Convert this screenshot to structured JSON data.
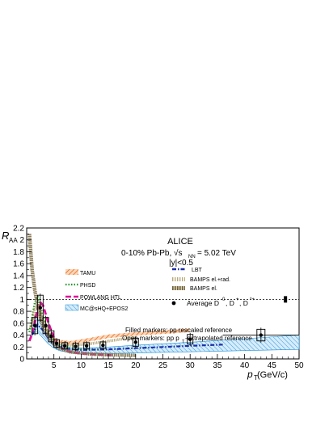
{
  "chart_data": {
    "type": "line",
    "title": "ALICE",
    "system_label": "0-10% Pb-Pb, √s",
    "system_sub": "NN",
    "system_energy": " = 5.02 TeV",
    "rapidity_label": "|y|<0.5",
    "ylabel": "R",
    "ylabel_sub": "AA",
    "xlabel": "p",
    "xlabel_sub": "T",
    "xlabel_unit": " (GeV/c)",
    "xlim": [
      0,
      50
    ],
    "ylim": [
      0,
      2.2
    ],
    "x_ticks": [
      "5",
      "10",
      "15",
      "20",
      "25",
      "30",
      "35",
      "40",
      "45",
      "50"
    ],
    "y_ticks": [
      "0",
      "0.2",
      "0.4",
      "0.6",
      "0.8",
      "1",
      "1.2",
      "1.4",
      "1.6",
      "1.8",
      "2",
      "2.2"
    ],
    "reference_line": 1,
    "note_filled": "Filled markers: pp rescaled reference",
    "note_open": "Open markers: pp p",
    "note_open_sub": "T",
    "note_open_end": "-extrapolated reference",
    "legend_left": [
      "TAMU",
      "PHSD",
      "POWLANG HTL",
      "MC@sHQ+EPOS2"
    ],
    "legend_right": [
      "LBT",
      "BAMPS el.+rad.",
      "BAMPS el."
    ],
    "average_label": "Average D",
    "average_sup": "0",
    "average_rest": ", D",
    "average_sup2": "+",
    "average_rest2": ", D",
    "average_sup3": "*+",
    "data_points": {
      "x": [
        1.5,
        2.5,
        3.5,
        4.5,
        5.5,
        7.0,
        9.0,
        11.0,
        14.0,
        20.0,
        30.0,
        43.0
      ],
      "y": [
        0.56,
        0.86,
        0.56,
        0.38,
        0.26,
        0.22,
        0.21,
        0.22,
        0.23,
        0.28,
        0.33,
        0.4
      ]
    },
    "scaled_point": {
      "x": 47.5,
      "y": 1.0
    },
    "series": [
      {
        "name": "TAMU",
        "color": "#e86a1c",
        "x": [
          0.5,
          1.0,
          1.5,
          2.0,
          2.5,
          3.0,
          4.0,
          5.0,
          6.0,
          8.0,
          10.0,
          12.0,
          15.0,
          20.0,
          25.0,
          30.0
        ],
        "y": [
          0.5,
          0.6,
          0.72,
          0.74,
          0.68,
          0.58,
          0.42,
          0.33,
          0.29,
          0.27,
          0.3,
          0.33,
          0.38,
          0.42,
          0.45,
          0.48
        ]
      },
      {
        "name": "PHSD",
        "color": "#1a9a20",
        "x": [
          0.5,
          1.0,
          1.5,
          2.0,
          2.5,
          3.0,
          4.0,
          5.0,
          6.0,
          8.0,
          10.0,
          12.0,
          15.0
        ],
        "y": [
          0.45,
          0.7,
          0.95,
          1.05,
          0.9,
          0.7,
          0.45,
          0.3,
          0.22,
          0.18,
          0.17,
          0.16,
          0.16
        ]
      },
      {
        "name": "POWLANG HTL",
        "color": "#e0109a",
        "x": [
          0.5,
          1.0,
          1.5,
          2.0,
          2.5,
          3.0,
          4.0,
          5.0,
          6.0,
          8.0,
          10.0,
          12.0,
          14.0,
          16.0
        ],
        "y": [
          0.3,
          0.42,
          0.62,
          0.85,
          0.95,
          0.9,
          0.6,
          0.35,
          0.2,
          0.12,
          0.09,
          0.08,
          0.07,
          0.06
        ]
      },
      {
        "name": "LBT",
        "color": "#1b2fa6",
        "x": [
          1.0,
          2.0,
          3.0,
          4.0,
          5.0,
          6.0,
          8.0,
          10.0,
          15.0,
          20.0,
          25.0,
          30.0,
          36.0
        ],
        "y": [
          0.4,
          0.58,
          0.48,
          0.34,
          0.25,
          0.2,
          0.16,
          0.15,
          0.16,
          0.18,
          0.2,
          0.22,
          0.24
        ]
      },
      {
        "name": "BAMPS el.+rad.",
        "color": "#b7a87a",
        "x": [
          1.0,
          1.5,
          2.0,
          3.0,
          4.0,
          5.0,
          6.0,
          8.0,
          10.0,
          12.0,
          15.0,
          18.0,
          20.0
        ],
        "y": [
          0.6,
          0.85,
          0.9,
          0.7,
          0.45,
          0.32,
          0.26,
          0.23,
          0.24,
          0.26,
          0.3,
          0.34,
          0.36
        ]
      },
      {
        "name": "BAMPS el.",
        "color": "#857650",
        "x": [
          0.5,
          1.0,
          1.5,
          2.0,
          2.5,
          3.0,
          4.0,
          5.0,
          6.0,
          8.0,
          10.0,
          12.0,
          15.0,
          20.0
        ],
        "y": [
          2.1,
          1.5,
          1.15,
          0.9,
          0.7,
          0.55,
          0.38,
          0.25,
          0.18,
          0.12,
          0.1,
          0.08,
          0.07,
          0.06
        ]
      }
    ],
    "band": {
      "name": "MC@sHQ+EPOS2",
      "color": "#1e8fd6",
      "x": [
        1.0,
        2.0,
        3.0,
        4.0,
        5.0,
        6.0,
        8.0,
        10.0,
        15.0,
        20.0,
        30.0,
        40.0,
        50.0
      ],
      "y_low": [
        0.45,
        0.45,
        0.35,
        0.25,
        0.18,
        0.14,
        0.1,
        0.09,
        0.09,
        0.1,
        0.12,
        0.14,
        0.16
      ],
      "y_high": [
        0.65,
        0.8,
        0.6,
        0.42,
        0.3,
        0.24,
        0.19,
        0.18,
        0.2,
        0.23,
        0.28,
        0.34,
        0.4
      ]
    }
  }
}
